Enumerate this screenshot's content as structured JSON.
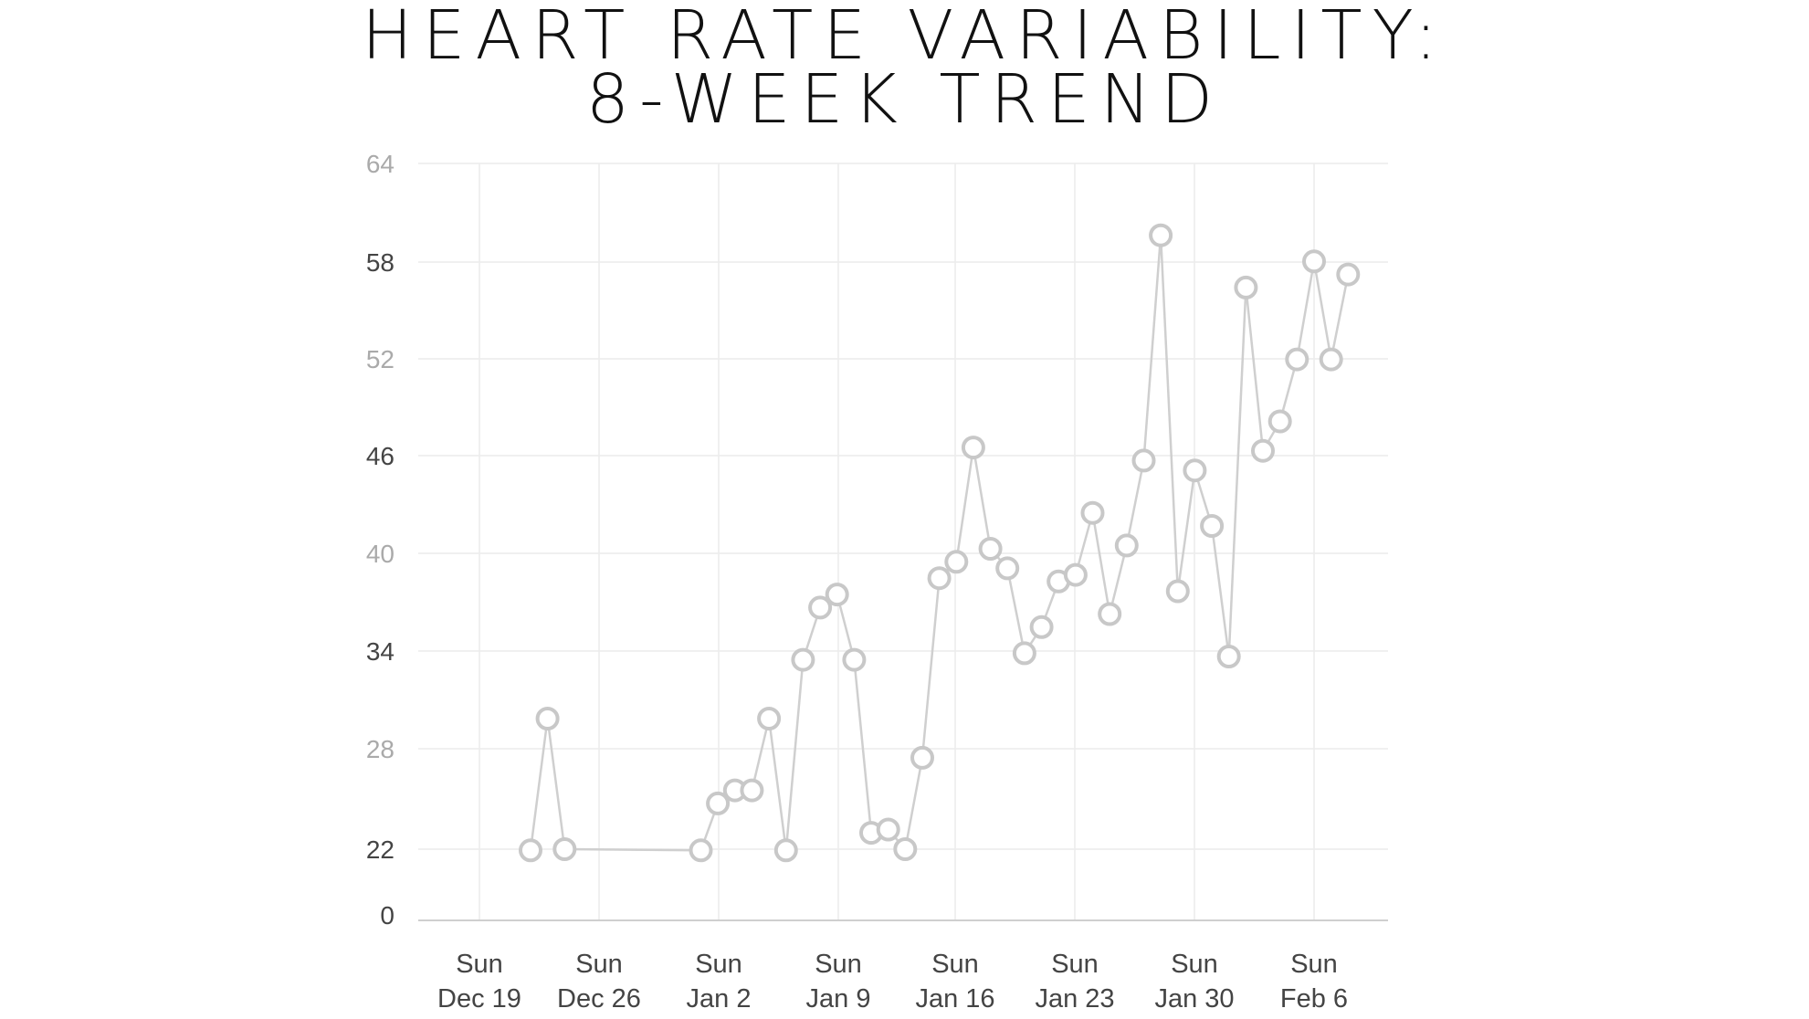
{
  "chart_data": {
    "type": "line",
    "title_lines": [
      "HEART RATE VARIABILITY:",
      "8-WEEK TREND"
    ],
    "xlabel": "",
    "ylabel": "",
    "y_ticks": [
      "0",
      "22",
      "28",
      "34",
      "40",
      "46",
      "52",
      "58",
      "64"
    ],
    "x_ticks": [
      {
        "line1": "Sun",
        "line2": "Dec 19"
      },
      {
        "line1": "Sun",
        "line2": "Dec 26"
      },
      {
        "line1": "Sun",
        "line2": "Jan 2"
      },
      {
        "line1": "Sun",
        "line2": "Jan 9"
      },
      {
        "line1": "Sun",
        "line2": "Jan 16"
      },
      {
        "line1": "Sun",
        "line2": "Jan 23"
      },
      {
        "line1": "Sun",
        "line2": "Jan 30"
      },
      {
        "line1": "Sun",
        "line2": "Feb 6"
      }
    ],
    "grid": true,
    "series": [
      {
        "color": "#cfcfcf",
        "points": [
          {
            "x": "Dec 22",
            "y": 21.6
          },
          {
            "x": "Dec 23",
            "y": 30.0
          },
          {
            "x": "Dec 24",
            "y": 22.0
          },
          {
            "x": "Jan 1",
            "y": 21.6
          },
          {
            "x": "Jan 2",
            "y": 24.8
          },
          {
            "x": "Jan 3",
            "y": 25.6
          },
          {
            "x": "Jan 4",
            "y": 25.6
          },
          {
            "x": "Jan 5",
            "y": 30.0
          },
          {
            "x": "Jan 6",
            "y": 21.6
          },
          {
            "x": "Jan 7",
            "y": 33.6
          },
          {
            "x": "Jan 8",
            "y": 36.8
          },
          {
            "x": "Jan 9",
            "y": 37.6
          },
          {
            "x": "Jan 10",
            "y": 33.6
          },
          {
            "x": "Jan 11",
            "y": 23.0
          },
          {
            "x": "Jan 12",
            "y": 23.2
          },
          {
            "x": "Jan 13",
            "y": 22.0
          },
          {
            "x": "Jan 14",
            "y": 27.6
          },
          {
            "x": "Jan 15",
            "y": 38.6
          },
          {
            "x": "Jan 16",
            "y": 39.6
          },
          {
            "x": "Jan 17",
            "y": 46.6
          },
          {
            "x": "Jan 18",
            "y": 40.4
          },
          {
            "x": "Jan 19",
            "y": 39.2
          },
          {
            "x": "Jan 20",
            "y": 34.0
          },
          {
            "x": "Jan 21",
            "y": 35.6
          },
          {
            "x": "Jan 22",
            "y": 38.4
          },
          {
            "x": "Jan 23",
            "y": 38.8
          },
          {
            "x": "Jan 24",
            "y": 42.6
          },
          {
            "x": "Jan 25",
            "y": 36.4
          },
          {
            "x": "Jan 26",
            "y": 40.6
          },
          {
            "x": "Jan 27",
            "y": 45.8
          },
          {
            "x": "Jan 28",
            "y": 59.6
          },
          {
            "x": "Jan 29",
            "y": 37.8
          },
          {
            "x": "Jan 30",
            "y": 45.2
          },
          {
            "x": "Jan 31",
            "y": 41.8
          },
          {
            "x": "Feb 1",
            "y": 33.8
          },
          {
            "x": "Feb 2",
            "y": 56.4
          },
          {
            "x": "Feb 3",
            "y": 46.4
          },
          {
            "x": "Feb 4",
            "y": 48.2
          },
          {
            "x": "Feb 5",
            "y": 52.0
          },
          {
            "x": "Feb 6",
            "y": 58.0
          },
          {
            "x": "Feb 7",
            "y": 52.0
          },
          {
            "x": "Feb 8",
            "y": 57.2
          }
        ]
      }
    ]
  },
  "colors": {
    "line": "#cfcfcf",
    "marker_stroke": "#c8c8c8",
    "grid": "#ececec",
    "axis": "#cfcfcf",
    "ytick_dark": "#444444",
    "ytick_light": "#aaaaaa"
  }
}
